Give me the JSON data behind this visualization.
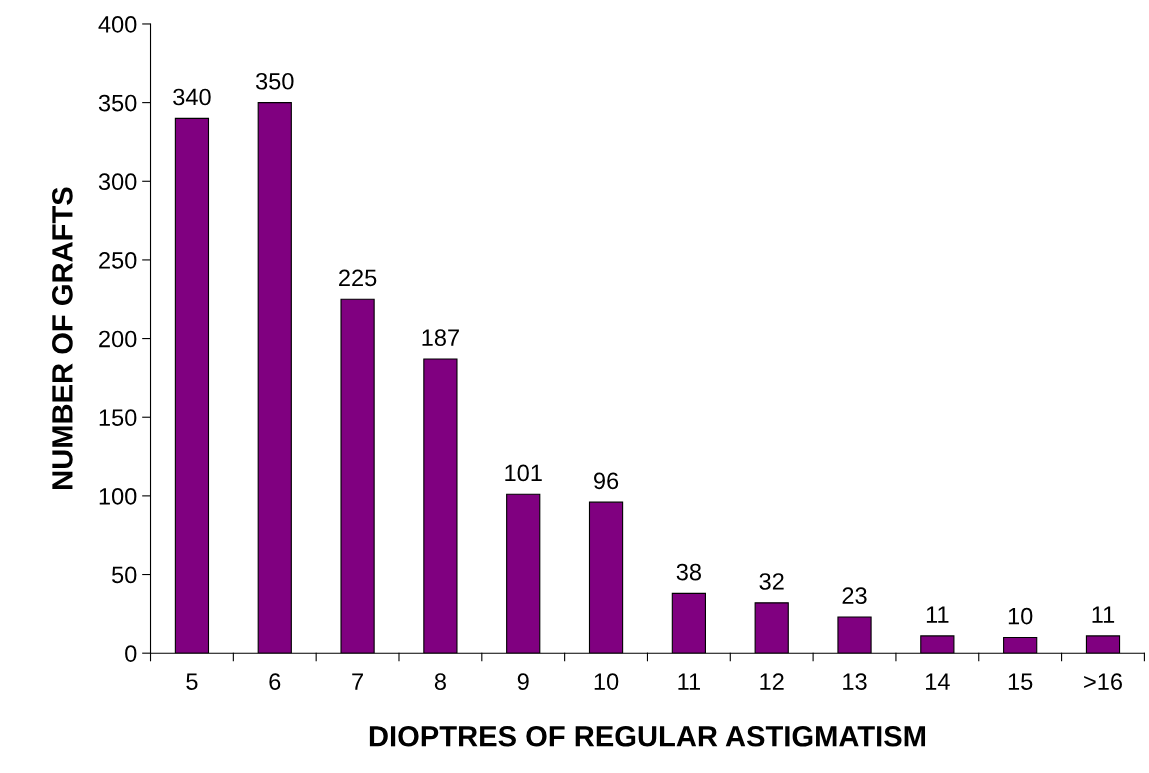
{
  "chart_data": {
    "type": "bar",
    "xlabel": "DIOPTRES OF REGULAR ASTIGMATISM",
    "ylabel": "NUMBER OF GRAFTS",
    "categories": [
      "5",
      "6",
      "7",
      "8",
      "9",
      "10",
      "11",
      "12",
      "13",
      "14",
      "15",
      ">16"
    ],
    "values": [
      340,
      350,
      225,
      187,
      101,
      96,
      38,
      32,
      23,
      11,
      10,
      11
    ],
    "color": "#800080",
    "ylim": [
      0,
      400
    ],
    "yticks": [
      0,
      50,
      100,
      150,
      200,
      250,
      300,
      350,
      400
    ],
    "data_labels": true,
    "grid": false,
    "legend": false
  }
}
